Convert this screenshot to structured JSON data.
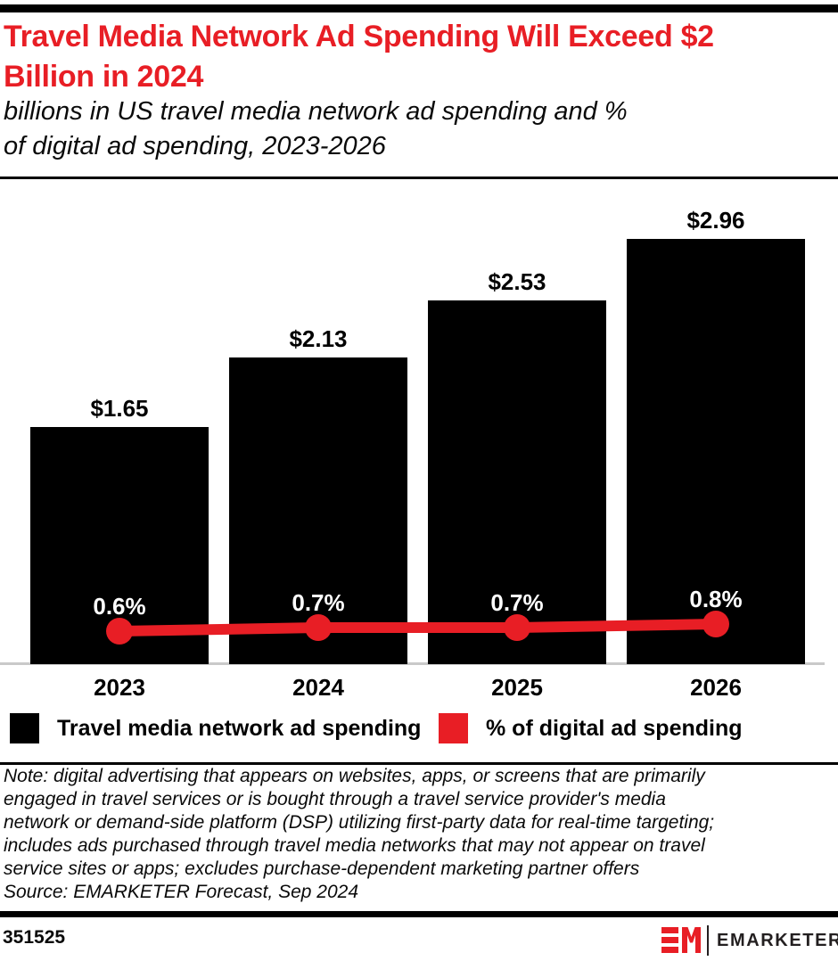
{
  "colors": {
    "red": "#e81e25",
    "bar_black": "#000000",
    "axis_gray": "#c9c9c9"
  },
  "header": {
    "title_lines": [
      "Travel Media Network Ad Spending Will Exceed $2",
      "Billion in 2024"
    ],
    "subtitle_lines": [
      "billions in US travel media network ad spending and %",
      "of digital ad spending, 2023-2026"
    ]
  },
  "chart_data": {
    "type": "bar",
    "combo_line": true,
    "categories": [
      "2023",
      "2024",
      "2025",
      "2026"
    ],
    "series": [
      {
        "name": "Travel media network ad spending",
        "type": "bar",
        "color": "#000000",
        "unit": "US$ billions",
        "values": [
          1.65,
          2.13,
          2.53,
          2.96
        ],
        "labels": [
          "$1.65",
          "$2.13",
          "$2.53",
          "$2.96"
        ]
      },
      {
        "name": "% of digital ad spending",
        "type": "line",
        "color": "#e81e25",
        "unit": "percent",
        "values": [
          0.6,
          0.7,
          0.7,
          0.8
        ],
        "labels": [
          "0.6%",
          "0.7%",
          "0.7%",
          "0.8%"
        ]
      }
    ],
    "grid": false,
    "y_axis_visible": false,
    "legend_position": "bottom"
  },
  "legend": {
    "items": [
      {
        "label": "Travel media network ad spending",
        "color": "#000000"
      },
      {
        "label": "% of digital ad spending",
        "color": "#e81e25"
      }
    ]
  },
  "notes": {
    "lines": [
      "Note: digital advertising that appears on websites, apps, or screens that are primarily",
      "engaged in travel services or is bought through a travel service provider's media",
      "network or demand-side platform (DSP) utilizing first-party data for real-time targeting;",
      "includes ads purchased through travel media networks that may not appear on travel",
      "service sites or apps; excludes purchase-dependent marketing partner offers"
    ],
    "source": "Source: EMARKETER Forecast, Sep 2024"
  },
  "footer": {
    "chart_id": "351525",
    "brand": "EMARKETER"
  }
}
